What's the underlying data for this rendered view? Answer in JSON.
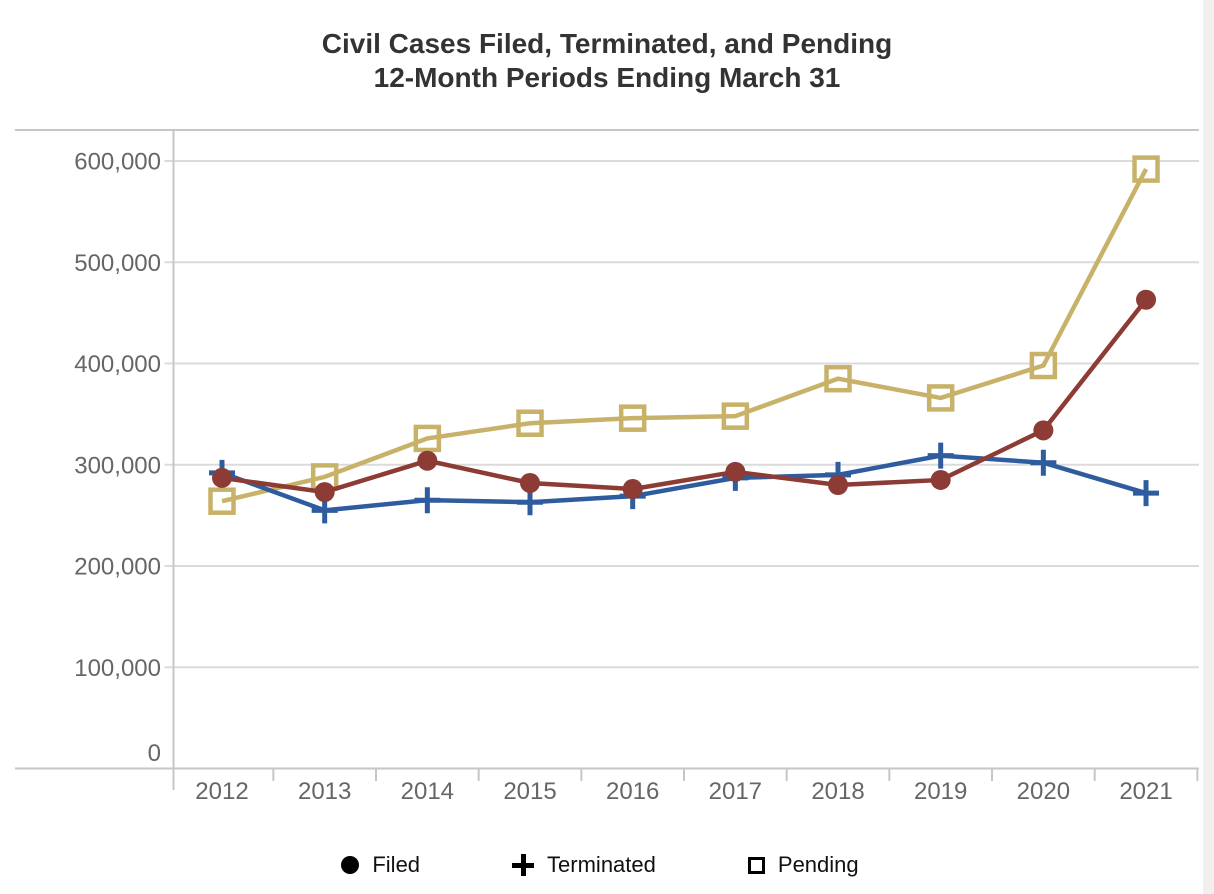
{
  "title": {
    "line1": "Civil Cases Filed, Terminated, and Pending",
    "line2": "12-Month Periods Ending March 31"
  },
  "chart_data": {
    "type": "line",
    "title": "Civil Cases Filed, Terminated, and Pending",
    "subtitle": "12-Month Periods Ending March 31",
    "categories": [
      "2012",
      "2013",
      "2014",
      "2015",
      "2016",
      "2017",
      "2018",
      "2019",
      "2020",
      "2021"
    ],
    "series": [
      {
        "name": "Filed",
        "marker": "circle",
        "color": "#8C3B35",
        "values": [
          287000,
          273000,
          304000,
          282000,
          276000,
          293000,
          280000,
          285000,
          334000,
          463000
        ]
      },
      {
        "name": "Terminated",
        "marker": "plus",
        "color": "#2F5C9E",
        "values": [
          292000,
          255000,
          265000,
          263000,
          269000,
          287000,
          290000,
          309000,
          302000,
          272000
        ]
      },
      {
        "name": "Pending",
        "marker": "square",
        "color": "#C8B269",
        "values": [
          264000,
          288000,
          326000,
          341000,
          346000,
          348000,
          385000,
          366000,
          398000,
          592000
        ]
      }
    ],
    "ylim": [
      0,
      600000
    ],
    "ytick_step": 100000,
    "yticks": [
      {
        "value": 600000,
        "label": "600,000"
      },
      {
        "value": 500000,
        "label": "500,000"
      },
      {
        "value": 400000,
        "label": "400,000"
      },
      {
        "value": 300000,
        "label": "300,000"
      },
      {
        "value": 200000,
        "label": "200,000"
      },
      {
        "value": 100000,
        "label": "100,000"
      },
      {
        "value": 0,
        "label": "0"
      }
    ],
    "grid": "horizontal",
    "legend_position": "bottom"
  },
  "legend": {
    "items": [
      {
        "label": "Filed",
        "marker": "circle"
      },
      {
        "label": "Terminated",
        "marker": "plus"
      },
      {
        "label": "Pending",
        "marker": "square"
      }
    ],
    "marker_color": "#000000"
  },
  "colors": {
    "filed": "#8C3B35",
    "terminated": "#2F5C9E",
    "pending": "#C8B269",
    "grid": "#DBDBDB",
    "frame": "#C6C6C6",
    "axis_text": "#666666",
    "title_text": "#333333",
    "legend_text": "#111111",
    "scrollbar": "#F1F0EE"
  }
}
